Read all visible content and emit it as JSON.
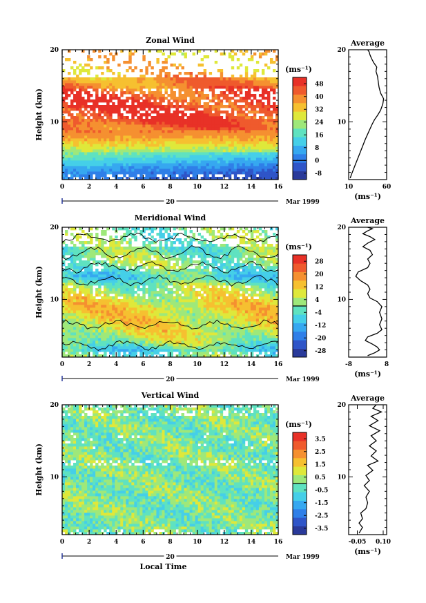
{
  "chart_data": [
    {
      "type": "heatmap",
      "title": "Zonal Wind",
      "ylabel": "Height (km)",
      "x_range": [
        0,
        16
      ],
      "y_range": [
        2,
        20
      ],
      "x_ticks": [
        "0",
        "2",
        "4",
        "6",
        "8",
        "10",
        "12",
        "14",
        "16"
      ],
      "y_ticks": [
        "10",
        "20"
      ],
      "date_marker": "20",
      "date_label": "Mar 1999",
      "colorbar": {
        "unit": "(ms⁻¹)",
        "ticks": [
          "48",
          "40",
          "32",
          "24",
          "16",
          "8",
          "0",
          "-8"
        ],
        "range": [
          -12,
          52
        ],
        "colors": [
          "#2a3a9a",
          "#2f55c8",
          "#2f7fe8",
          "#36a8f0",
          "#45cfe8",
          "#5fe2c0",
          "#9ee87a",
          "#dfe83a",
          "#f6c030",
          "#f59030",
          "#ef5a2d",
          "#e83127"
        ]
      },
      "field_profile": [
        [
          2.2,
          2
        ],
        [
          3,
          4
        ],
        [
          4,
          10
        ],
        [
          5,
          17
        ],
        [
          6,
          24
        ],
        [
          7,
          31
        ],
        [
          8,
          37
        ],
        [
          9,
          42
        ],
        [
          10,
          46
        ],
        [
          11,
          48
        ],
        [
          12,
          47
        ],
        [
          13,
          46
        ],
        [
          14,
          44
        ],
        [
          15,
          40
        ],
        [
          16,
          37
        ],
        [
          17,
          34
        ],
        [
          18,
          34
        ],
        [
          19,
          33
        ],
        [
          20,
          33
        ]
      ],
      "profile": {
        "title": "Average",
        "xlabel": "(ms⁻¹)",
        "x_ticks": [
          "10",
          "60"
        ],
        "x_range": [
          10,
          60
        ],
        "y_range": [
          2,
          20
        ],
        "y_ticks": [
          "10",
          "20"
        ],
        "points": [
          [
            12,
            2.2
          ],
          [
            14,
            2.8
          ],
          [
            17,
            3.6
          ],
          [
            20,
            4.4
          ],
          [
            23,
            5.2
          ],
          [
            26,
            6.0
          ],
          [
            29,
            6.8
          ],
          [
            32,
            7.6
          ],
          [
            35,
            8.3
          ],
          [
            38,
            9.0
          ],
          [
            41,
            9.7
          ],
          [
            44,
            10.3
          ],
          [
            48,
            10.9
          ],
          [
            52,
            11.6
          ],
          [
            55,
            12.5
          ],
          [
            56,
            13.2
          ],
          [
            52,
            14.0
          ],
          [
            50,
            14.8
          ],
          [
            49,
            15.5
          ],
          [
            48,
            16.3
          ],
          [
            46,
            17.0
          ],
          [
            47,
            17.6
          ],
          [
            43,
            18.2
          ],
          [
            40,
            18.8
          ],
          [
            38,
            19.3
          ],
          [
            37,
            19.7
          ],
          [
            35,
            20.0
          ]
        ]
      }
    },
    {
      "type": "heatmap",
      "title": "Meridional Wind",
      "ylabel": "Height (km)",
      "x_range": [
        0,
        16
      ],
      "y_range": [
        2,
        20
      ],
      "x_ticks": [
        "0",
        "2",
        "4",
        "6",
        "8",
        "10",
        "12",
        "14",
        "16"
      ],
      "y_ticks": [
        "10",
        "20"
      ],
      "date_marker": "20",
      "date_label": "Mar 1999",
      "colorbar": {
        "unit": "(ms⁻¹)",
        "ticks": [
          "28",
          "20",
          "12",
          "4",
          "-4",
          "-12",
          "-20",
          "-28"
        ],
        "range": [
          -32,
          32
        ],
        "colors": [
          "#2a3a9a",
          "#2f55c8",
          "#2f7fe8",
          "#36a8f0",
          "#45cfe8",
          "#5fe2c0",
          "#9ee87a",
          "#dfe83a",
          "#f6c030",
          "#f59030",
          "#ef5a2d",
          "#e83127"
        ]
      },
      "field_profile": [
        [
          2.2,
          -2
        ],
        [
          3,
          -6
        ],
        [
          4,
          2
        ],
        [
          5,
          6
        ],
        [
          6,
          8
        ],
        [
          7,
          9
        ],
        [
          8,
          9
        ],
        [
          9,
          10
        ],
        [
          10,
          8
        ],
        [
          11,
          5
        ],
        [
          12,
          2
        ],
        [
          13,
          -6
        ],
        [
          14,
          -3
        ],
        [
          15,
          2
        ],
        [
          16,
          1
        ],
        [
          17,
          -1
        ],
        [
          18,
          1
        ],
        [
          19,
          0
        ],
        [
          20,
          0
        ]
      ],
      "profile": {
        "title": "Average",
        "xlabel": "(ms⁻¹)",
        "x_ticks": [
          "-8",
          "8"
        ],
        "x_range": [
          -8,
          8
        ],
        "y_range": [
          2,
          20
        ],
        "y_ticks": [
          "10",
          "20"
        ],
        "points": [
          [
            0,
            2.2
          ],
          [
            3,
            2.6
          ],
          [
            5,
            3.0
          ],
          [
            4,
            3.4
          ],
          [
            2,
            3.8
          ],
          [
            -1,
            4.3
          ],
          [
            0,
            4.8
          ],
          [
            4,
            5.3
          ],
          [
            6,
            5.8
          ],
          [
            5,
            6.5
          ],
          [
            6,
            7.3
          ],
          [
            5,
            8.2
          ],
          [
            6,
            9.0
          ],
          [
            4,
            9.7
          ],
          [
            1,
            10.2
          ],
          [
            0,
            10.8
          ],
          [
            1,
            11.4
          ],
          [
            0,
            12.0
          ],
          [
            -3,
            12.6
          ],
          [
            -5,
            13.2
          ],
          [
            -4,
            13.8
          ],
          [
            0,
            14.4
          ],
          [
            1,
            15.0
          ],
          [
            0,
            15.6
          ],
          [
            2,
            16.2
          ],
          [
            1,
            16.8
          ],
          [
            -2,
            17.3
          ],
          [
            0,
            17.8
          ],
          [
            3,
            18.3
          ],
          [
            1,
            18.7
          ],
          [
            -2,
            19.1
          ],
          [
            0,
            19.5
          ],
          [
            2,
            19.8
          ],
          [
            0,
            20.0
          ]
        ]
      }
    },
    {
      "type": "heatmap",
      "title": "Vertical Wind",
      "ylabel": "Height (km)",
      "xlabel": "Local Time",
      "x_range": [
        0,
        16
      ],
      "y_range": [
        2,
        20
      ],
      "x_ticks": [
        "0",
        "2",
        "4",
        "6",
        "8",
        "10",
        "12",
        "14",
        "16"
      ],
      "y_ticks": [
        "10",
        "20"
      ],
      "date_marker": "20",
      "date_label": "Mar 1999",
      "colorbar": {
        "unit": "(ms⁻¹)",
        "ticks": [
          "3.5",
          "2.5",
          "1.5",
          "0.5",
          "-0.5",
          "-1.5",
          "-2.5",
          "-3.5"
        ],
        "range": [
          -4,
          4
        ],
        "colors": [
          "#2a3a9a",
          "#2f55c8",
          "#2f7fe8",
          "#36a8f0",
          "#45cfe8",
          "#5fe2c0",
          "#9ee87a",
          "#dfe83a",
          "#f6c030",
          "#f59030",
          "#ef5a2d",
          "#e83127"
        ]
      },
      "field_profile": [
        [
          2.2,
          0
        ],
        [
          5,
          0
        ],
        [
          8,
          0
        ],
        [
          11,
          0
        ],
        [
          14,
          0
        ],
        [
          17,
          0
        ],
        [
          20,
          0
        ]
      ],
      "profile": {
        "title": "Average",
        "xlabel": "(ms⁻¹)",
        "x_ticks": [
          "-0.05",
          "0.10"
        ],
        "x_range": [
          -0.1,
          0.12
        ],
        "y_range": [
          2,
          20
        ],
        "y_ticks": [
          "10",
          "20"
        ],
        "points": [
          [
            -0.04,
            2.2
          ],
          [
            -0.02,
            3.0
          ],
          [
            -0.04,
            3.6
          ],
          [
            -0.02,
            4.2
          ],
          [
            -0.03,
            5.0
          ],
          [
            0.0,
            5.6
          ],
          [
            0.01,
            6.4
          ],
          [
            0.0,
            7.2
          ],
          [
            0.02,
            8.0
          ],
          [
            -0.01,
            8.8
          ],
          [
            0.02,
            9.5
          ],
          [
            0.0,
            10.2
          ],
          [
            0.04,
            10.9
          ],
          [
            0.01,
            11.6
          ],
          [
            0.07,
            12.2
          ],
          [
            0.03,
            12.9
          ],
          [
            0.06,
            13.6
          ],
          [
            0.02,
            14.3
          ],
          [
            0.06,
            15.0
          ],
          [
            0.03,
            15.7
          ],
          [
            0.08,
            16.4
          ],
          [
            0.02,
            17.1
          ],
          [
            0.07,
            17.8
          ],
          [
            0.03,
            18.4
          ],
          [
            0.09,
            19.0
          ],
          [
            0.04,
            19.5
          ],
          [
            0.06,
            20.0
          ]
        ]
      }
    }
  ]
}
